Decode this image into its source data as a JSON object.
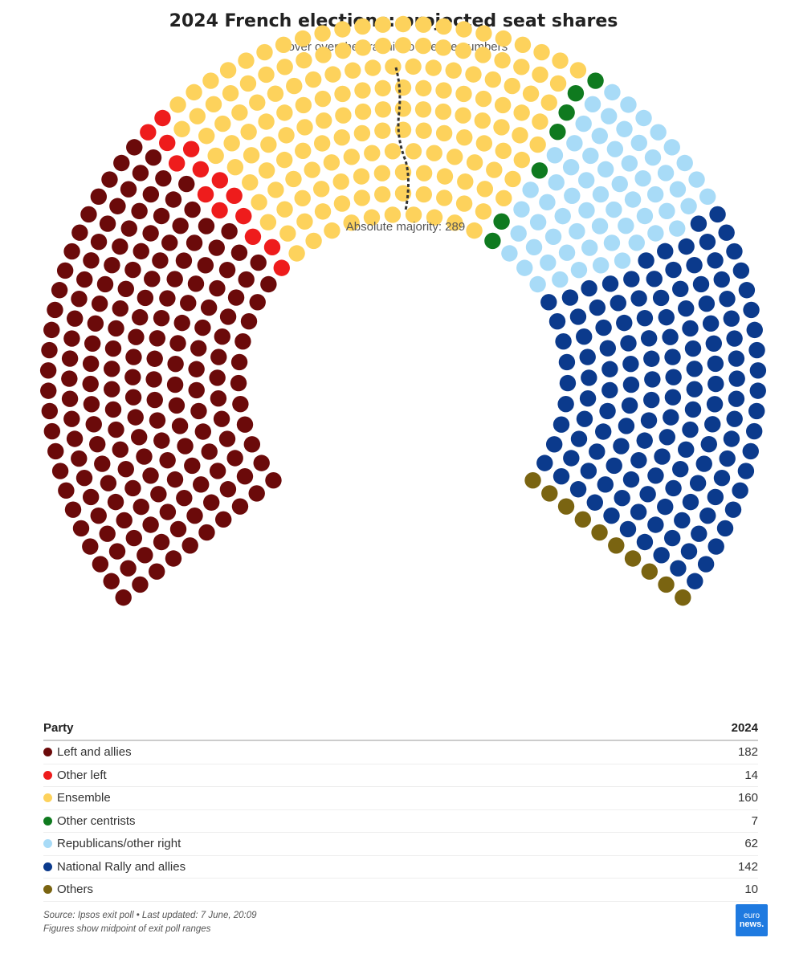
{
  "header": {
    "title": "2024 French elections: projected seat shares",
    "subtitle": "Hover over the graphic to see the numbers"
  },
  "chart_data": {
    "type": "parliament",
    "total_seats": 577,
    "majority_label": "Absolute majority: 289",
    "majority_seats": 289,
    "series": [
      {
        "name": "Left and allies",
        "value": 182,
        "color": "#6b0a0a"
      },
      {
        "name": "Other left",
        "value": 14,
        "color": "#ee1c1c"
      },
      {
        "name": "Ensemble",
        "value": 160,
        "color": "#fdd25c"
      },
      {
        "name": "Other centrists",
        "value": 7,
        "color": "#0f7a1f"
      },
      {
        "name": "Republicans/other right",
        "value": 62,
        "color": "#a8dbf7"
      },
      {
        "name": "National Rally and allies",
        "value": 142,
        "color": "#0b3a8c"
      },
      {
        "name": "Others",
        "value": 10,
        "color": "#7a6411"
      }
    ]
  },
  "table": {
    "col_party": "Party",
    "col_year": "2024"
  },
  "footer": {
    "source": "Source: Ipsos exit poll • Last updated: 7 June, 20:09",
    "note": "Figures show midpoint of exit poll ranges",
    "logo_line1": "euro",
    "logo_line2": "news."
  }
}
